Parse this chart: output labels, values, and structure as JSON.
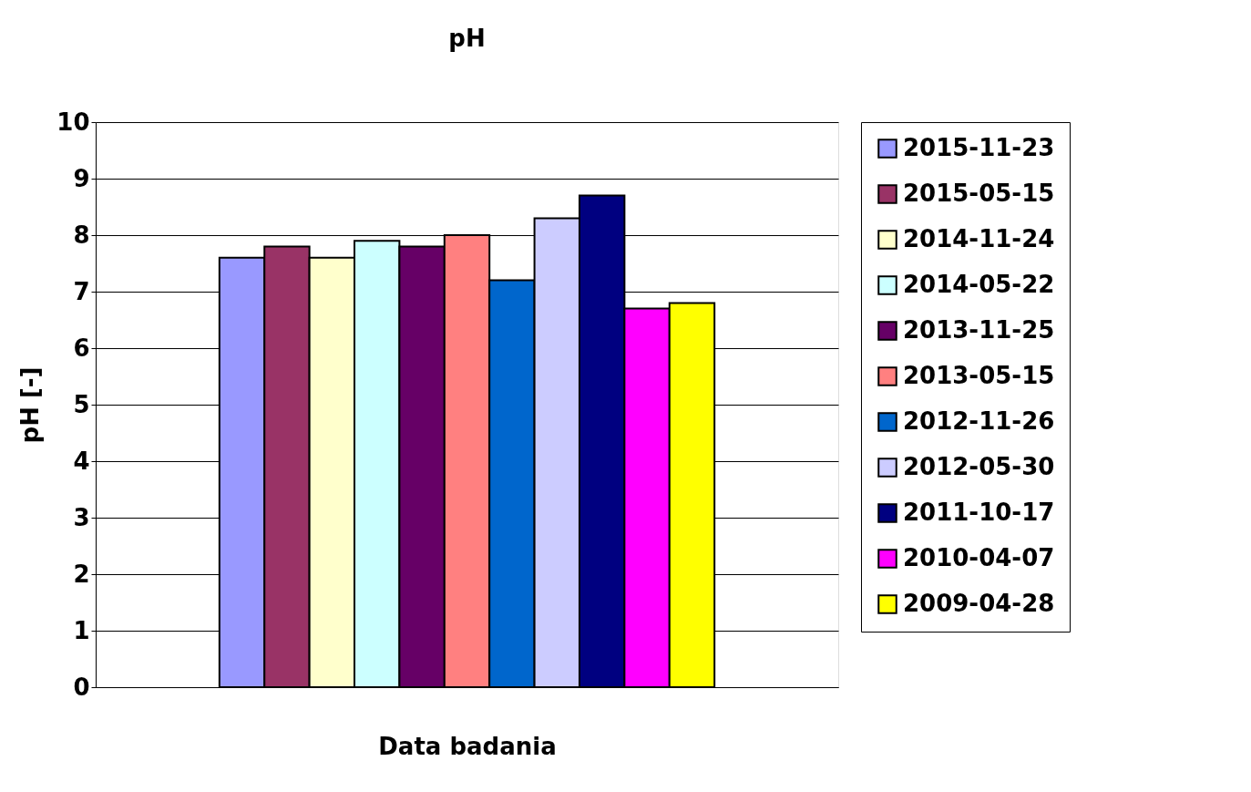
{
  "chart_data": {
    "type": "bar",
    "title": "pH",
    "xlabel": "Data badania",
    "ylabel": "pH [-]",
    "categories": [
      null
    ],
    "series": [
      {
        "name": "2015-11-23",
        "color": "#9999ff",
        "values": [
          7.6
        ]
      },
      {
        "name": "2015-05-15",
        "color": "#993366",
        "values": [
          7.8
        ]
      },
      {
        "name": "2014-11-24",
        "color": "#ffffcc",
        "values": [
          7.6
        ]
      },
      {
        "name": "2014-05-22",
        "color": "#ccffff",
        "values": [
          7.9
        ]
      },
      {
        "name": "2013-11-25",
        "color": "#660066",
        "values": [
          7.8
        ]
      },
      {
        "name": "2013-05-15",
        "color": "#ff8080",
        "values": [
          8.0
        ]
      },
      {
        "name": "2012-11-26",
        "color": "#0066cc",
        "values": [
          7.2
        ]
      },
      {
        "name": "2012-05-30",
        "color": "#ccccff",
        "values": [
          8.3
        ]
      },
      {
        "name": "2011-10-17",
        "color": "#000080",
        "values": [
          8.7
        ]
      },
      {
        "name": "2010-04-07",
        "color": "#ff00ff",
        "values": [
          6.7
        ]
      },
      {
        "name": "2009-04-28",
        "color": "#ffff00",
        "values": [
          6.8
        ]
      }
    ],
    "ylim": [
      0,
      10
    ],
    "yticks": [
      0,
      1,
      2,
      3,
      4,
      5,
      6,
      7,
      8,
      9,
      10
    ],
    "grid": "y",
    "legend": "right"
  }
}
